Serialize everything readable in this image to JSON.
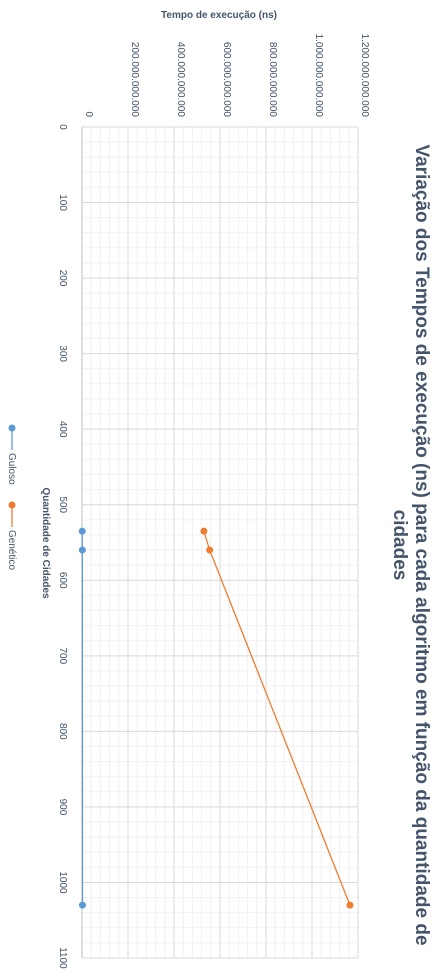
{
  "chart_data": {
    "type": "line",
    "title": "Variação dos Tempos de execução (ns) para cada algoritmo em função da quantidade de cidades",
    "title_lines": [
      "Variação dos Tempos de execução (ns) para cada algoritmo em função da quantidade de",
      "cidades"
    ],
    "xlabel": "Quantidade de Cidades",
    "ylabel": "Tempo de execução (ns)",
    "xlim": [
      0,
      1100
    ],
    "ylim": [
      0,
      1200000000000
    ],
    "x_ticks": [
      0,
      100,
      200,
      300,
      400,
      500,
      600,
      700,
      800,
      900,
      1000,
      1100
    ],
    "x_tick_labels": [
      "0",
      "100",
      "200",
      "300",
      "400",
      "500",
      "600",
      "700",
      "800",
      "900",
      "1000",
      "1100"
    ],
    "y_ticks": [
      0,
      200000000000,
      400000000000,
      600000000000,
      800000000000,
      1000000000000,
      1200000000000
    ],
    "y_tick_labels": [
      "0",
      "200.000.000.000",
      "400.000.000.000",
      "600.000.000.000",
      "800.000.000.000",
      "1.000.000.000.000",
      "1.200.000.000.000"
    ],
    "grid": true,
    "legend_position": "bottom",
    "series": [
      {
        "name": "Guloso",
        "color": "#5b9bd5",
        "x": [
          535,
          560,
          1030
        ],
        "y": [
          1000000000,
          1500000000,
          2000000000
        ]
      },
      {
        "name": "Genético",
        "color": "#ed7d31",
        "x": [
          535,
          560,
          1030
        ],
        "y": [
          530000000000,
          555000000000,
          1165000000000
        ]
      }
    ]
  }
}
